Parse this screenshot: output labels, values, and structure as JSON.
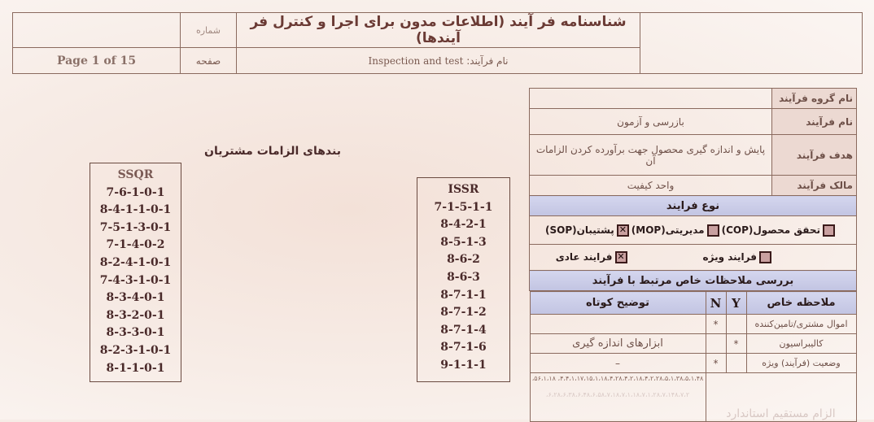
{
  "header": {
    "title": "شناسنامه فر آیند  (اطلاعات مدون برای اجرا و کنترل فر آیندها)",
    "process_name_label": "نام فرآیند:",
    "process_name": "Inspection and test",
    "number_label": "شماره",
    "page_label": "صفحه",
    "page": "Page 1 of 15"
  },
  "info": [
    {
      "label": "نام گروه فرآیند",
      "value": ""
    },
    {
      "label": "نام فرآیند",
      "value": "بازرسی و آزمون"
    },
    {
      "label": "هدف فرآیند",
      "value": "پایش و اندازه گیری محصول جهت برآورده کردن الزامات آن"
    },
    {
      "label": "مالک فرآیند",
      "value": "واحد کیفیت"
    }
  ],
  "process_type": {
    "title": "نوع فرایند",
    "options": [
      {
        "label": "تحقق محصول(COP)",
        "checked": false
      },
      {
        "label": "مدیریتی(MOP)",
        "checked": false
      },
      {
        "label": "پشتیبان(SOP)",
        "checked": true
      }
    ],
    "options2": [
      {
        "label": "فرایند ویژه",
        "checked": false
      },
      {
        "label": "فرایند عادی",
        "checked": true
      }
    ]
  },
  "special": {
    "title": "بررسی ملاحظات خاص مرتبط با فرآیند",
    "col_item": "ملاحظه خاص",
    "col_y": "Y",
    "col_n": "N",
    "col_desc": "توضیح کوتاه",
    "rows": [
      {
        "item": "اموال مشتری/تامین‌کننده",
        "y": "",
        "n": "*",
        "desc": ""
      },
      {
        "item": "کالیبراسیون",
        "y": "*",
        "n": "",
        "desc": "ابزارهای اندازه گیری"
      },
      {
        "item": "وضعیت (فرآیند) ویژه",
        "y": "",
        "n": "*",
        "desc": "–"
      }
    ]
  },
  "clauses_line": "۴،۴،۱،۱۷،۱۵،۱،۱۸،۴،۲۸،۴،۲،۱۸،۴،۲،۲۸،۵،۱،۳۸،۵،۱،۴۸، ۵۶،۱،۱۸،",
  "last_row": {
    "label": "الزام مستقیم استاندارد",
    "value": "۶،۲۸،۶،۳۸،۶،۴۸،۶،۵۸،۷،۱۸،۷،۱،۱۸،۷،۱،۲۸،۷،۱۴۸،۷،۲،"
  },
  "requirements": {
    "title": "بندهای الزامات مشتریان",
    "ssqr": {
      "title": "SSQR",
      "items": [
        "7-6-1-0-1",
        "8-4-1-1-0-1",
        "7-5-1-3-0-1",
        "7-1-4-0-2",
        "8-2-4-1-0-1",
        "7-4-3-1-0-1",
        "8-3-4-0-1",
        "8-3-2-0-1",
        "8-3-3-0-1",
        "8-2-3-1-0-1",
        "8-1-1-0-1"
      ]
    },
    "issr": {
      "title": "ISSR",
      "items": [
        "7-1-5-1-1",
        "8-4-2-1",
        "8-5-1-3",
        "8-6-2",
        "8-6-3",
        "8-7-1-1",
        "8-7-1-2",
        "8-7-1-4",
        "8-7-1-6",
        "9-1-1-1"
      ]
    }
  }
}
